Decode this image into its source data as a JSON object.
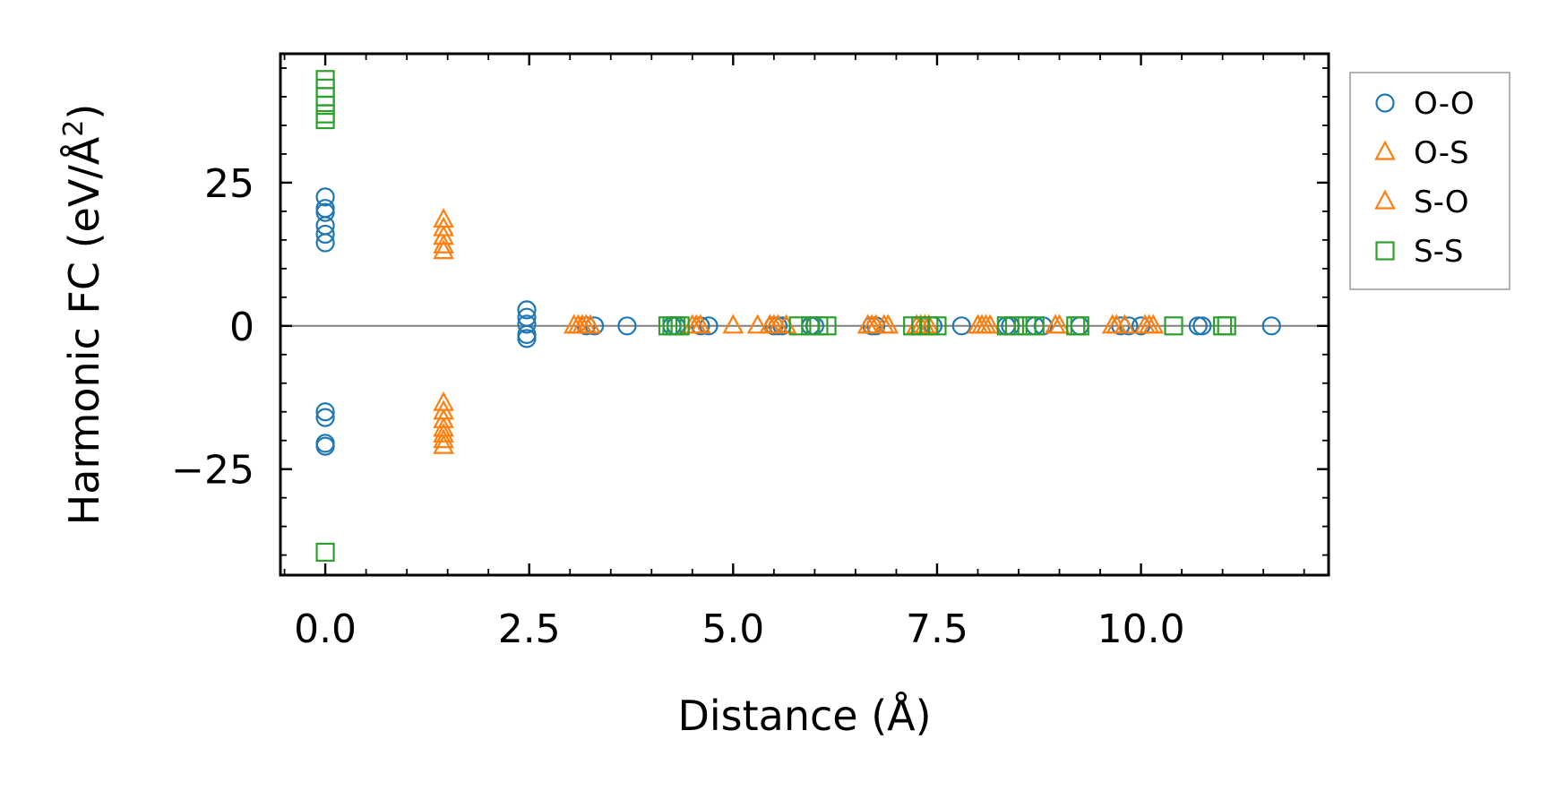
{
  "chart_data": {
    "type": "scatter",
    "xlabel": "Distance (Å)",
    "ylabel_main": "Harmonic FC (eV/Å",
    "ylabel_sup": "2",
    "ylabel_close": ")",
    "xlim": [
      -0.55,
      12.3
    ],
    "ylim": [
      -43.5,
      47.5
    ],
    "xticks": [
      0.0,
      2.5,
      5.0,
      7.5,
      10.0
    ],
    "xtick_labels": [
      "0.0",
      "2.5",
      "5.0",
      "7.5",
      "10.0"
    ],
    "yticks": [
      -25,
      0,
      25
    ],
    "ytick_labels": [
      "−25",
      "0",
      "25"
    ],
    "reference_line_y": 0,
    "legend_position": "outside-right",
    "series": [
      {
        "name": "O-O",
        "marker": "circle",
        "color": "#1f77b4",
        "x": [
          0,
          0,
          0,
          0,
          0,
          0,
          0,
          0,
          0,
          0,
          2.47,
          2.47,
          2.47,
          2.47,
          2.47,
          3.2,
          3.3,
          3.7,
          4.25,
          4.3,
          4.6,
          4.7,
          5.5,
          5.55,
          5.6,
          5.95,
          6.0,
          6.7,
          6.75,
          7.3,
          7.45,
          7.8,
          8.35,
          8.4,
          8.7,
          8.8,
          9.25,
          9.75,
          9.85,
          10.0,
          10.7,
          10.75,
          11.6
        ],
        "y": [
          22.5,
          20.5,
          19.8,
          17.5,
          16,
          14.5,
          -15,
          -16,
          -20.5,
          -21,
          2.8,
          1.5,
          0.3,
          -1.5,
          -2.2,
          0,
          0,
          0,
          0,
          0,
          0,
          0,
          0,
          0,
          0,
          0,
          0,
          0,
          0,
          0,
          0,
          0,
          0,
          0,
          0,
          0,
          0,
          0,
          0,
          0,
          0,
          0,
          0
        ]
      },
      {
        "name": "O-S",
        "marker": "triangle",
        "color": "#ff7f0e",
        "x": [
          1.45,
          1.45,
          1.45,
          1.45,
          1.45,
          1.45,
          1.45,
          1.45,
          1.45,
          1.45,
          1.45,
          1.45,
          3.05,
          3.15,
          3.25,
          4.5,
          4.6,
          5.0,
          5.3,
          5.45,
          5.5,
          5.55,
          6.65,
          6.75,
          6.85,
          7.3,
          7.4,
          8.0,
          8.1,
          8.95,
          9.7,
          9.8,
          10.05
        ],
        "y": [
          18.5,
          17,
          15.5,
          14,
          13,
          -13.5,
          -15,
          -16.5,
          -18,
          -19,
          -20,
          -21,
          0,
          0,
          0,
          0,
          0,
          0,
          0,
          0,
          0,
          0,
          0,
          0,
          0,
          0,
          0,
          0,
          0,
          0,
          0,
          0,
          0
        ]
      },
      {
        "name": "S-O",
        "marker": "triangle",
        "color": "#ff7f0e",
        "x": [
          3.1,
          3.2,
          4.55,
          5.45,
          5.65,
          6.7,
          6.9,
          7.25,
          7.35,
          8.05,
          8.15,
          9.0,
          9.65,
          10.1,
          10.15
        ],
        "y": [
          0,
          0,
          0,
          0,
          0,
          0,
          0,
          0,
          0,
          0,
          0,
          0,
          0,
          0,
          0
        ]
      },
      {
        "name": "S-S",
        "marker": "square",
        "color": "#2ca02c",
        "x": [
          0,
          0,
          0,
          0,
          0,
          0,
          0,
          4.2,
          4.25,
          4.3,
          4.35,
          5.8,
          5.95,
          6.05,
          6.15,
          7.2,
          7.3,
          7.4,
          7.5,
          8.35,
          8.45,
          8.6,
          8.7,
          9.2,
          9.25,
          10.4,
          11.0,
          11.05
        ],
        "y": [
          43,
          41.5,
          40,
          38.5,
          37,
          36,
          -39.5,
          0,
          0,
          0,
          0,
          0,
          0,
          0,
          0,
          0,
          0,
          0,
          0,
          0,
          0,
          0,
          0,
          0,
          0,
          0,
          0,
          0
        ]
      }
    ]
  }
}
